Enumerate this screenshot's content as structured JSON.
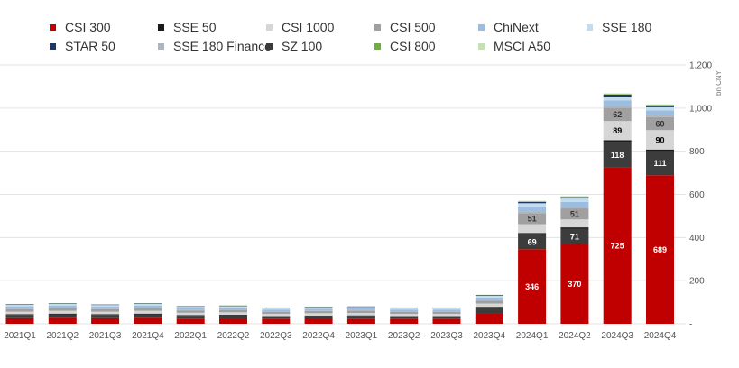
{
  "chart_data": {
    "type": "bar",
    "stacked": true,
    "categories": [
      "2021Q1",
      "2021Q2",
      "2021Q3",
      "2021Q4",
      "2022Q1",
      "2022Q2",
      "2022Q3",
      "2022Q4",
      "2023Q1",
      "2023Q2",
      "2023Q3",
      "2023Q4",
      "2024Q1",
      "2024Q2",
      "2024Q3",
      "2024Q4"
    ],
    "ylim": [
      0,
      1200
    ],
    "yticks": [
      0,
      200,
      400,
      600,
      800,
      1000,
      1200
    ],
    "ytick_labels": [
      "-",
      "200",
      "400",
      "600",
      "800",
      "1,000",
      "1,200"
    ],
    "ylabel": "bn CNY",
    "grid": true,
    "legend_position": "top",
    "series": [
      {
        "name": "CSI 300",
        "color": "#c00000",
        "label_color": "#ffffff",
        "values": [
          26,
          28,
          26,
          28,
          24,
          25,
          22,
          23,
          24,
          22,
          22,
          50,
          346,
          370,
          725,
          689
        ],
        "labels": [
          null,
          null,
          null,
          null,
          null,
          null,
          null,
          null,
          null,
          null,
          null,
          null,
          "346",
          "370",
          "725",
          "689"
        ]
      },
      {
        "name": "SZ 100",
        "color": "#3c3c3c",
        "label_color": "#ffffff",
        "values": [
          15,
          16,
          15,
          16,
          13,
          14,
          12,
          13,
          13,
          12,
          12,
          26,
          69,
          71,
          118,
          111
        ],
        "labels": [
          null,
          null,
          null,
          null,
          null,
          null,
          null,
          null,
          null,
          null,
          null,
          null,
          "69",
          "71",
          "118",
          "111"
        ]
      },
      {
        "name": "SSE 50",
        "color": "#1a1a1a",
        "label_color": "#ffffff",
        "values": [
          3,
          3,
          3,
          3,
          3,
          3,
          2,
          2,
          2,
          2,
          2,
          3,
          6,
          6,
          8,
          8
        ],
        "labels": [
          null,
          null,
          null,
          null,
          null,
          null,
          null,
          null,
          null,
          null,
          null,
          null,
          null,
          null,
          null,
          null
        ]
      },
      {
        "name": "CSI 1000",
        "color": "#d6d6d6",
        "label_color": "#000000",
        "values": [
          12,
          13,
          12,
          13,
          11,
          11,
          10,
          11,
          11,
          10,
          10,
          15,
          41,
          37,
          89,
          90
        ],
        "labels": [
          null,
          null,
          null,
          null,
          null,
          null,
          null,
          null,
          null,
          null,
          null,
          null,
          "41",
          "37",
          "89",
          "90"
        ]
      },
      {
        "name": "CSI 500",
        "color": "#a0a0a0",
        "label_color": "#333333",
        "values": [
          12,
          12,
          12,
          12,
          10,
          11,
          10,
          10,
          10,
          10,
          10,
          14,
          51,
          51,
          62,
          60
        ],
        "labels": [
          null,
          null,
          null,
          null,
          null,
          null,
          null,
          null,
          null,
          null,
          null,
          null,
          "51",
          "51",
          "62",
          "60"
        ]
      },
      {
        "name": "SSE 180 Finance",
        "color": "#aeb4c0",
        "label_color": "#333333",
        "values": [
          3,
          3,
          3,
          3,
          3,
          3,
          2,
          3,
          3,
          2,
          2,
          3,
          8,
          8,
          10,
          9
        ],
        "labels": [
          null,
          null,
          null,
          null,
          null,
          null,
          null,
          null,
          null,
          null,
          null,
          null,
          null,
          null,
          null,
          null
        ]
      },
      {
        "name": "ChiNext",
        "color": "#9bbde0",
        "label_color": "#333333",
        "values": [
          10,
          10,
          9,
          10,
          9,
          9,
          8,
          8,
          9,
          8,
          8,
          11,
          22,
          22,
          24,
          22
        ],
        "labels": [
          null,
          null,
          null,
          null,
          null,
          null,
          null,
          null,
          null,
          null,
          null,
          null,
          null,
          null,
          null,
          null
        ]
      },
      {
        "name": "SSE 180",
        "color": "#c5dcef",
        "label_color": "#333333",
        "values": [
          7,
          7,
          7,
          7,
          6,
          6,
          6,
          6,
          6,
          6,
          6,
          8,
          16,
          16,
          16,
          15
        ],
        "labels": [
          null,
          null,
          null,
          null,
          null,
          null,
          null,
          null,
          null,
          null,
          null,
          null,
          null,
          null,
          null,
          null
        ]
      },
      {
        "name": "STAR 50",
        "color": "#1f3864",
        "label_color": "#ffffff",
        "values": [
          2,
          2,
          2,
          2,
          2,
          2,
          2,
          2,
          2,
          2,
          2,
          3,
          6,
          6,
          10,
          8
        ],
        "labels": [
          null,
          null,
          null,
          null,
          null,
          null,
          null,
          null,
          null,
          null,
          null,
          null,
          null,
          null,
          null,
          null
        ]
      },
      {
        "name": "CSI 800",
        "color": "#70ad47",
        "label_color": "#333333",
        "values": [
          1,
          1,
          1,
          1,
          1,
          1,
          1,
          1,
          1,
          1,
          1,
          1,
          2,
          2,
          2,
          2
        ],
        "labels": [
          null,
          null,
          null,
          null,
          null,
          null,
          null,
          null,
          null,
          null,
          null,
          null,
          null,
          null,
          null,
          null
        ]
      },
      {
        "name": "MSCI A50",
        "color": "#c5e0b4",
        "label_color": "#333333",
        "values": [
          1,
          1,
          1,
          1,
          1,
          1,
          1,
          1,
          1,
          1,
          1,
          1,
          3,
          3,
          4,
          3
        ],
        "labels": [
          null,
          null,
          null,
          null,
          null,
          null,
          null,
          null,
          null,
          null,
          null,
          null,
          null,
          null,
          null,
          null
        ]
      }
    ],
    "legend": [
      {
        "name": "CSI 300",
        "color": "#c00000"
      },
      {
        "name": "SSE 50",
        "color": "#1a1a1a"
      },
      {
        "name": "CSI 1000",
        "color": "#d6d6d6"
      },
      {
        "name": "CSI 500",
        "color": "#a0a0a0"
      },
      {
        "name": "ChiNext",
        "color": "#9bbde0"
      },
      {
        "name": "SSE 180",
        "color": "#c5dcef"
      },
      {
        "name": "STAR 50",
        "color": "#1f3864"
      },
      {
        "name": "SSE 180 Finance",
        "color": "#aeb4c0"
      },
      {
        "name": "SZ 100",
        "color": "#3c3c3c"
      },
      {
        "name": "CSI 800",
        "color": "#70ad47"
      },
      {
        "name": "MSCI A50",
        "color": "#c5e0b4"
      }
    ]
  }
}
